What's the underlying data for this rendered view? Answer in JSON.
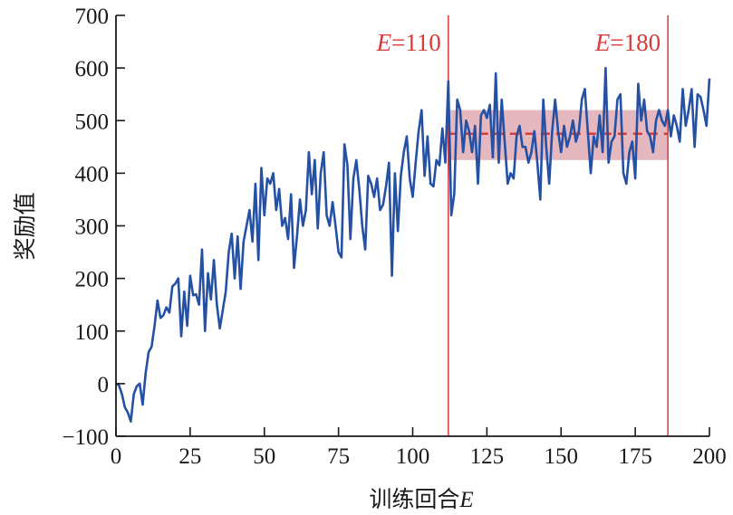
{
  "chart_data": {
    "type": "line",
    "xlabel": "训练回合",
    "xlabel_var": "E",
    "ylabel": "奖励值",
    "xlim": [
      0,
      200
    ],
    "ylim": [
      -100,
      700
    ],
    "x_ticks": [
      0,
      25,
      50,
      75,
      100,
      125,
      150,
      175,
      200
    ],
    "x_tick_labels": [
      "0",
      "25",
      "50",
      "75",
      "100",
      "125",
      "150",
      "175",
      "200"
    ],
    "y_ticks": [
      -100,
      0,
      100,
      200,
      300,
      400,
      500,
      600,
      700
    ],
    "y_tick_labels": [
      "−100",
      "0",
      "100",
      "200",
      "300",
      "400",
      "500",
      "600",
      "700"
    ],
    "grid": false,
    "colors": {
      "series": "#2451a4",
      "marker": "#d83a3a",
      "band": "#d99aa3",
      "axis": "#1a1a1a"
    },
    "series": [
      {
        "values": [
          0,
          -3,
          -20,
          -45,
          -55,
          -72,
          -20,
          -5,
          0,
          -40,
          20,
          60,
          70,
          110,
          158,
          125,
          130,
          145,
          135,
          185,
          190,
          200,
          90,
          175,
          110,
          205,
          168,
          170,
          150,
          255,
          100,
          210,
          160,
          235,
          150,
          105,
          140,
          175,
          250,
          285,
          200,
          280,
          180,
          270,
          300,
          330,
          270,
          380,
          235,
          410,
          320,
          390,
          380,
          400,
          330,
          370,
          300,
          315,
          275,
          360,
          220,
          280,
          350,
          300,
          330,
          440,
          360,
          425,
          295,
          400,
          440,
          320,
          300,
          345,
          300,
          250,
          240,
          455,
          415,
          275,
          390,
          425,
          370,
          300,
          255,
          395,
          380,
          355,
          390,
          330,
          340,
          375,
          420,
          205,
          400,
          290,
          395,
          440,
          470,
          390,
          355,
          420,
          480,
          520,
          395,
          470,
          380,
          375,
          425,
          415,
          485,
          420,
          575,
          320,
          360,
          540,
          520,
          440,
          500,
          480,
          440,
          490,
          380,
          510,
          520,
          505,
          530,
          430,
          590,
          420,
          540,
          460,
          380,
          400,
          390,
          470,
          490,
          450,
          450,
          420,
          440,
          480,
          420,
          350,
          540,
          450,
          380,
          480,
          540,
          480,
          440,
          490,
          450,
          470,
          500,
          460,
          480,
          540,
          560,
          480,
          400,
          470,
          450,
          510,
          440,
          600,
          420,
          460,
          470,
          540,
          550,
          400,
          380,
          440,
          460,
          390,
          570,
          500,
          540,
          480,
          470,
          440,
          500,
          520,
          500,
          490,
          520,
          470,
          510,
          490,
          460,
          560,
          490,
          520,
          560,
          450,
          550,
          545,
          520,
          490,
          580
        ]
      }
    ],
    "annotations": [
      {
        "label": "=110",
        "var": "E",
        "x": 112
      },
      {
        "label": "=180",
        "var": "E",
        "x": 186
      }
    ],
    "band": {
      "x_range": [
        112,
        186
      ],
      "y_range": [
        425,
        520
      ],
      "mean": 475
    }
  }
}
